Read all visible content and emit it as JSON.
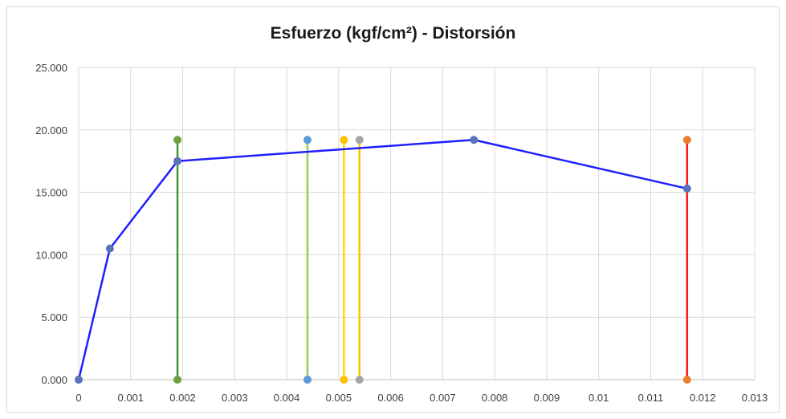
{
  "chart_data": {
    "type": "scatter",
    "title": "Esfuerzo (kgf/cm²) - Distorsión",
    "xlabel": "",
    "ylabel": "",
    "xlim": [
      0,
      0.013
    ],
    "ylim": [
      0,
      25
    ],
    "x_ticks": [
      "0",
      "0.001",
      "0.002",
      "0.003",
      "0.004",
      "0.005",
      "0.006",
      "0.007",
      "0.008",
      "0.009",
      "0.01",
      "0.011",
      "0.012",
      "0.013"
    ],
    "y_ticks": [
      "0.000",
      "5.000",
      "10.000",
      "15.000",
      "20.000",
      "25.000"
    ],
    "grid": true,
    "legend": "none",
    "series": [
      {
        "color": "#1f1fff",
        "x": [
          0,
          0.0006,
          0.0019,
          0.0076,
          0.0117
        ],
        "y": [
          0,
          10.5,
          17.5,
          19.2,
          15.3
        ]
      },
      {
        "color": "#3a9a3a",
        "marker": "#70a040",
        "x": [
          0.0019,
          0.0019
        ],
        "y": [
          0,
          19.2
        ]
      },
      {
        "color": "#8fd14f",
        "marker": "#5b9bd5",
        "x": [
          0.0044,
          0.0044
        ],
        "y": [
          0,
          19.2
        ]
      },
      {
        "color": "#ffd700",
        "marker": "#ffc000",
        "x": [
          0.0051,
          0.0051
        ],
        "y": [
          0,
          19.2
        ]
      },
      {
        "color": "#ffc000",
        "marker": "#a5a5a5",
        "x": [
          0.0054,
          0.0054
        ],
        "y": [
          0,
          19.2
        ]
      },
      {
        "color": "#ff1a1a",
        "marker": "#ed7d31",
        "x": [
          0.0117,
          0.0117
        ],
        "y": [
          0,
          19.2
        ]
      }
    ]
  }
}
